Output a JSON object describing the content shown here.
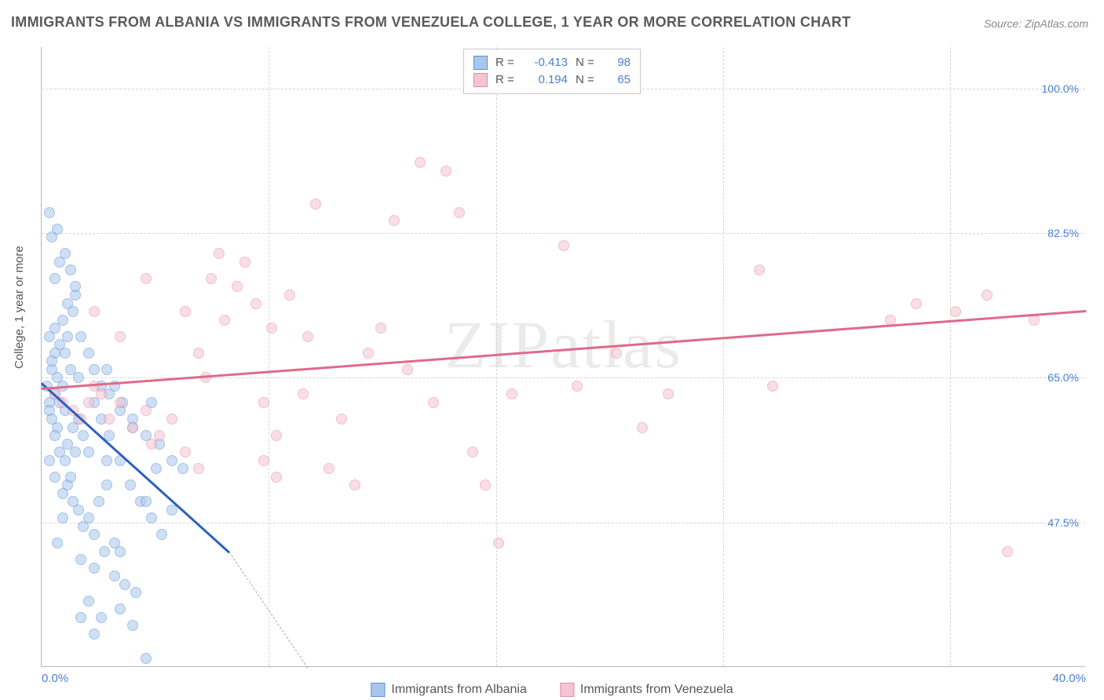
{
  "title": "IMMIGRANTS FROM ALBANIA VS IMMIGRANTS FROM VENEZUELA COLLEGE, 1 YEAR OR MORE CORRELATION CHART",
  "source": "Source: ZipAtlas.com",
  "watermark": "ZIPatlas",
  "ylabel": "College, 1 year or more",
  "chart": {
    "type": "scatter",
    "xlim": [
      0,
      40
    ],
    "ylim": [
      30,
      105
    ],
    "yticks": [
      47.5,
      65.0,
      82.5,
      100.0
    ],
    "ytick_labels": [
      "47.5%",
      "65.0%",
      "82.5%",
      "100.0%"
    ],
    "xticks": [
      0,
      40
    ],
    "xtick_labels": [
      "0.0%",
      "40.0%"
    ],
    "x_minor_gridlines": [
      8.7,
      17.4,
      26.1,
      34.8
    ],
    "background_color": "#ffffff",
    "grid_color": "#d6d6d6",
    "marker_radius": 7,
    "marker_opacity": 0.55
  },
  "series": [
    {
      "key": "albania",
      "label": "Immigrants from Albania",
      "color_fill": "#a9c7ec",
      "color_stroke": "#5a8fd6",
      "R": "-0.413",
      "N": "98",
      "trend": {
        "x1": 0,
        "y1": 64.5,
        "x2": 7.2,
        "y2": 44.0,
        "dash_to_x": 10.2,
        "dash_to_y": 30.0,
        "color": "#2d5fbf"
      },
      "points": [
        [
          0.2,
          64
        ],
        [
          0.3,
          62
        ],
        [
          0.4,
          66
        ],
        [
          0.5,
          63
        ],
        [
          0.3,
          61
        ],
        [
          0.4,
          60
        ],
        [
          0.6,
          65
        ],
        [
          0.5,
          68
        ],
        [
          0.7,
          62
        ],
        [
          0.8,
          64
        ],
        [
          0.9,
          61
        ],
        [
          0.6,
          59
        ],
        [
          0.4,
          67
        ],
        [
          0.3,
          70
        ],
        [
          0.5,
          71
        ],
        [
          0.7,
          69
        ],
        [
          0.8,
          72
        ],
        [
          1.0,
          74
        ],
        [
          1.2,
          73
        ],
        [
          1.3,
          75
        ],
        [
          1.0,
          70
        ],
        [
          0.9,
          68
        ],
        [
          1.1,
          66
        ],
        [
          1.4,
          65
        ],
        [
          0.5,
          58
        ],
        [
          0.7,
          56
        ],
        [
          0.9,
          55
        ],
        [
          1.0,
          57
        ],
        [
          1.2,
          59
        ],
        [
          1.4,
          60
        ],
        [
          1.6,
          58
        ],
        [
          1.8,
          56
        ],
        [
          1.0,
          52
        ],
        [
          1.2,
          50
        ],
        [
          1.4,
          49
        ],
        [
          1.6,
          47
        ],
        [
          1.8,
          48
        ],
        [
          2.0,
          46
        ],
        [
          2.2,
          50
        ],
        [
          2.5,
          52
        ],
        [
          0.8,
          48
        ],
        [
          0.6,
          45
        ],
        [
          1.5,
          43
        ],
        [
          2.0,
          42
        ],
        [
          2.4,
          44
        ],
        [
          2.8,
          41
        ],
        [
          3.2,
          40
        ],
        [
          3.6,
          39
        ],
        [
          0.5,
          77
        ],
        [
          0.7,
          79
        ],
        [
          0.9,
          80
        ],
        [
          1.1,
          78
        ],
        [
          1.3,
          76
        ],
        [
          0.4,
          82
        ],
        [
          0.6,
          83
        ],
        [
          0.3,
          85
        ],
        [
          2.0,
          62
        ],
        [
          2.3,
          60
        ],
        [
          2.6,
          58
        ],
        [
          3.0,
          55
        ],
        [
          3.4,
          52
        ],
        [
          3.8,
          50
        ],
        [
          4.2,
          48
        ],
        [
          4.5,
          57
        ],
        [
          2.5,
          66
        ],
        [
          2.8,
          64
        ],
        [
          3.1,
          62
        ],
        [
          3.5,
          60
        ],
        [
          4.0,
          58
        ],
        [
          4.4,
          54
        ],
        [
          4.2,
          62
        ],
        [
          5.0,
          55
        ],
        [
          1.5,
          36
        ],
        [
          1.8,
          38
        ],
        [
          2.0,
          34
        ],
        [
          2.3,
          36
        ],
        [
          3.0,
          37
        ],
        [
          3.5,
          35
        ],
        [
          4.0,
          31
        ],
        [
          4.0,
          50
        ],
        [
          0.3,
          55
        ],
        [
          0.5,
          53
        ],
        [
          0.8,
          51
        ],
        [
          1.1,
          53
        ],
        [
          1.3,
          56
        ],
        [
          5.4,
          54
        ],
        [
          2.5,
          55
        ],
        [
          3.0,
          44
        ],
        [
          1.5,
          70
        ],
        [
          1.8,
          68
        ],
        [
          2.0,
          66
        ],
        [
          2.3,
          64
        ],
        [
          2.6,
          63
        ],
        [
          3.0,
          61
        ],
        [
          3.5,
          59
        ],
        [
          5.0,
          49
        ],
        [
          4.6,
          46
        ],
        [
          2.8,
          45
        ]
      ]
    },
    {
      "key": "venezuela",
      "label": "Immigrants from Venezuela",
      "color_fill": "#f5c4d1",
      "color_stroke": "#e58ca5",
      "R": "0.194",
      "N": "65",
      "trend": {
        "x1": 0,
        "y1": 63.8,
        "x2": 40,
        "y2": 73.2,
        "color": "#e06a8a"
      },
      "points": [
        [
          0.5,
          63
        ],
        [
          0.8,
          62
        ],
        [
          1.2,
          61
        ],
        [
          1.5,
          60
        ],
        [
          1.8,
          62
        ],
        [
          2.0,
          64
        ],
        [
          2.3,
          63
        ],
        [
          2.6,
          60
        ],
        [
          3.0,
          62
        ],
        [
          3.5,
          59
        ],
        [
          4.0,
          61
        ],
        [
          4.2,
          57
        ],
        [
          4.5,
          58
        ],
        [
          5.0,
          60
        ],
        [
          5.5,
          56
        ],
        [
          6.0,
          54
        ],
        [
          6.0,
          68
        ],
        [
          6.5,
          77
        ],
        [
          6.8,
          80
        ],
        [
          7.0,
          72
        ],
        [
          7.5,
          76
        ],
        [
          7.8,
          79
        ],
        [
          8.2,
          74
        ],
        [
          8.5,
          62
        ],
        [
          8.8,
          71
        ],
        [
          8.5,
          55
        ],
        [
          9.0,
          53
        ],
        [
          9.0,
          58
        ],
        [
          9.5,
          75
        ],
        [
          10.0,
          63
        ],
        [
          10.5,
          86
        ],
        [
          10.2,
          70
        ],
        [
          11.0,
          54
        ],
        [
          11.5,
          60
        ],
        [
          12.0,
          52
        ],
        [
          12.5,
          68
        ],
        [
          13.0,
          71
        ],
        [
          13.5,
          84
        ],
        [
          14.0,
          66
        ],
        [
          14.5,
          91
        ],
        [
          15.0,
          62
        ],
        [
          15.5,
          90
        ],
        [
          16.0,
          85
        ],
        [
          16.5,
          56
        ],
        [
          17.5,
          45
        ],
        [
          17.0,
          52
        ],
        [
          18.0,
          63
        ],
        [
          20.0,
          81
        ],
        [
          20.5,
          64
        ],
        [
          22.0,
          68
        ],
        [
          23.0,
          59
        ],
        [
          24.0,
          63
        ],
        [
          27.5,
          78
        ],
        [
          28.0,
          64
        ],
        [
          32.5,
          72
        ],
        [
          33.5,
          74
        ],
        [
          35.0,
          73
        ],
        [
          36.2,
          75
        ],
        [
          37.0,
          44
        ],
        [
          38.0,
          72
        ],
        [
          2.0,
          73
        ],
        [
          3.0,
          70
        ],
        [
          4.0,
          77
        ],
        [
          5.5,
          73
        ],
        [
          6.3,
          65
        ]
      ]
    }
  ],
  "legend_top": {
    "r_label": "R =",
    "n_label": "N ="
  }
}
